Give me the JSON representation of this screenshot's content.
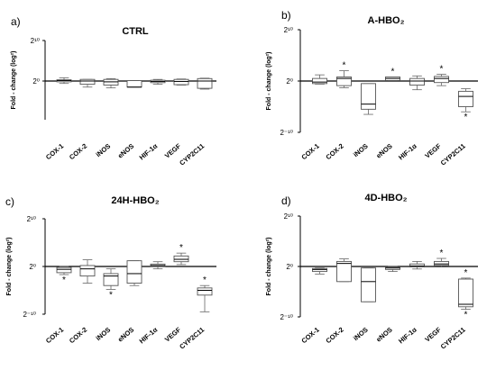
{
  "chart_data": [
    {
      "type": "boxplot",
      "panel_label": "a)",
      "title": "CTRL",
      "ylabel": "Fold - change (log²)",
      "y_ticks": [
        "2¹⁰",
        "2⁰"
      ],
      "ylim": [
        -10,
        10
      ],
      "categories": [
        "COX-1",
        "COX-2",
        "iNOS",
        "eNOS",
        "HIF-1α",
        "VEGF",
        "CYP2C11"
      ],
      "boxes": [
        {
          "wl": -0.6,
          "q1": -0.2,
          "med": 0.1,
          "q3": 0.3,
          "wh": 0.8,
          "star": null
        },
        {
          "wl": -1.5,
          "q1": -0.8,
          "med": 0.0,
          "q3": 0.4,
          "wh": 0.4,
          "star": null
        },
        {
          "wl": -1.7,
          "q1": -1.0,
          "med": -0.2,
          "q3": 0.4,
          "wh": 0.6,
          "star": null
        },
        {
          "wl": -1.5,
          "q1": -1.5,
          "med": -1.5,
          "q3": 0.1,
          "wh": 0.1,
          "star": null
        },
        {
          "wl": -0.8,
          "q1": -0.4,
          "med": -0.1,
          "q3": 0.2,
          "wh": 0.4,
          "star": null
        },
        {
          "wl": -1.0,
          "q1": -0.9,
          "med": -0.1,
          "q3": 0.4,
          "wh": 0.5,
          "star": null
        },
        {
          "wl": -2.0,
          "q1": -1.8,
          "med": 0.0,
          "q3": 0.6,
          "wh": 0.7,
          "star": null
        }
      ]
    },
    {
      "type": "boxplot",
      "panel_label": "b)",
      "title": "A-HBO₂",
      "ylabel": "Fold - change (log²)",
      "y_ticks": [
        "2¹⁰",
        "2⁰",
        "2⁻¹⁰"
      ],
      "ylim": [
        -10,
        10
      ],
      "categories": [
        "COX-1",
        "COX-2",
        "iNOS",
        "eNOS",
        "HIF-1α",
        "VEGF",
        "CYP2C11"
      ],
      "boxes": [
        {
          "wl": -0.6,
          "q1": -0.5,
          "med": -0.2,
          "q3": 0.5,
          "wh": 1.2,
          "star": null
        },
        {
          "wl": -1.3,
          "q1": -0.9,
          "med": 0.5,
          "q3": 0.8,
          "wh": 2.0,
          "star": "above"
        },
        {
          "wl": -6.5,
          "q1": -5.5,
          "med": -4.5,
          "q3": -0.5,
          "wh": -0.5,
          "star": null
        },
        {
          "wl": 0.1,
          "q1": 0.1,
          "med": 0.5,
          "q3": 0.8,
          "wh": 0.8,
          "star": "above"
        },
        {
          "wl": -1.7,
          "q1": -0.8,
          "med": 0.0,
          "q3": 0.5,
          "wh": 1.0,
          "star": null
        },
        {
          "wl": -0.9,
          "q1": -0.3,
          "med": 0.5,
          "q3": 0.9,
          "wh": 1.3,
          "star": "above"
        },
        {
          "wl": -6.0,
          "q1": -5.0,
          "med": -3.0,
          "q3": -2.0,
          "wh": -1.5,
          "star": "below"
        }
      ]
    },
    {
      "type": "boxplot",
      "panel_label": "c)",
      "title": "24H-HBO₂",
      "ylabel": "Fold - change (log²)",
      "y_ticks": [
        "2¹⁰",
        "2⁰",
        "2⁻¹⁰"
      ],
      "ylim": [
        -10,
        10
      ],
      "categories": [
        "COX-1",
        "COX-2",
        "iNOS",
        "eNOS",
        "HIF-1α",
        "VEGF",
        "CYP2C11"
      ],
      "boxes": [
        {
          "wl": -1.7,
          "q1": -1.3,
          "med": -0.6,
          "q3": -0.2,
          "wh": 0.0,
          "star": "below"
        },
        {
          "wl": -3.5,
          "q1": -2.0,
          "med": -0.5,
          "q3": 0.2,
          "wh": 1.4,
          "star": null
        },
        {
          "wl": -4.8,
          "q1": -4.0,
          "med": -2.0,
          "q3": -1.5,
          "wh": -0.5,
          "star": "below"
        },
        {
          "wl": -4.0,
          "q1": -3.5,
          "med": -1.5,
          "q3": 1.2,
          "wh": 1.2,
          "star": null
        },
        {
          "wl": -0.5,
          "q1": 0.0,
          "med": 0.2,
          "q3": 0.5,
          "wh": 1.0,
          "star": null
        },
        {
          "wl": 0.4,
          "q1": 1.0,
          "med": 1.5,
          "q3": 2.2,
          "wh": 2.8,
          "star": "above"
        },
        {
          "wl": -9.5,
          "q1": -6.0,
          "med": -5.0,
          "q3": -4.5,
          "wh": -4.0,
          "star": "above"
        }
      ]
    },
    {
      "type": "boxplot",
      "panel_label": "d)",
      "title": "4D-HBO₂",
      "ylabel": "Fold - change (log²)",
      "y_ticks": [
        "2¹⁰",
        "2⁰",
        "2⁻¹⁰"
      ],
      "ylim": [
        -10,
        10
      ],
      "categories": [
        "COX-1",
        "COX-2",
        "iNOS",
        "eNOS",
        "HIF-1α",
        "VEGF",
        "CYP2C11"
      ],
      "boxes": [
        {
          "wl": -1.5,
          "q1": -1.0,
          "med": -0.6,
          "q3": -0.4,
          "wh": -0.3,
          "star": null
        },
        {
          "wl": -3.0,
          "q1": -3.0,
          "med": 0.6,
          "q3": 1.0,
          "wh": 1.5,
          "star": null
        },
        {
          "wl": -7.0,
          "q1": -7.0,
          "med": -3.0,
          "q3": -0.3,
          "wh": -0.3,
          "star": null
        },
        {
          "wl": -1.0,
          "q1": -0.6,
          "med": -0.3,
          "q3": -0.1,
          "wh": 0.0,
          "star": null
        },
        {
          "wl": -0.5,
          "q1": -0.1,
          "med": 0.1,
          "q3": 0.5,
          "wh": 1.0,
          "star": null
        },
        {
          "wl": -0.1,
          "q1": 0.2,
          "med": 0.5,
          "q3": 1.0,
          "wh": 1.6,
          "star": "above"
        },
        {
          "wl": -8.5,
          "q1": -8.0,
          "med": -7.5,
          "q3": -2.5,
          "wh": -2.3,
          "star": "both"
        }
      ]
    }
  ]
}
